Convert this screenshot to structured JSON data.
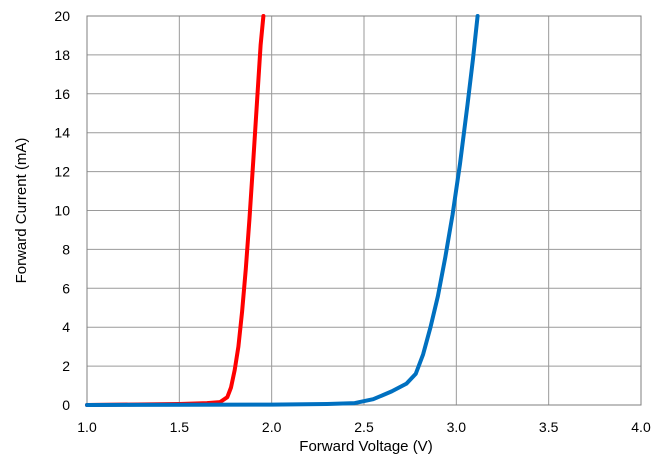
{
  "chart_data": {
    "type": "line",
    "title": "",
    "xlabel": "Forward Voltage (V)",
    "ylabel": "Forward Current (mA)",
    "xlim": [
      1.0,
      4.0
    ],
    "ylim": [
      0,
      20
    ],
    "x_ticks": [
      "1.0",
      "1.5",
      "2.0",
      "2.5",
      "3.0",
      "3.5",
      "4.0"
    ],
    "y_ticks": [
      "0",
      "2",
      "4",
      "6",
      "8",
      "10",
      "12",
      "14",
      "16",
      "18",
      "20"
    ],
    "grid": true,
    "legend": "none",
    "series": [
      {
        "color": "#ff0000",
        "points": [
          [
            1.0,
            0.0
          ],
          [
            1.5,
            0.05
          ],
          [
            1.65,
            0.1
          ],
          [
            1.72,
            0.15
          ],
          [
            1.76,
            0.4
          ],
          [
            1.78,
            0.9
          ],
          [
            1.8,
            1.8
          ],
          [
            1.82,
            3.0
          ],
          [
            1.84,
            4.8
          ],
          [
            1.86,
            7.0
          ],
          [
            1.88,
            9.6
          ],
          [
            1.9,
            12.5
          ],
          [
            1.92,
            15.5
          ],
          [
            1.94,
            18.5
          ],
          [
            1.955,
            20.0
          ]
        ]
      },
      {
        "color": "#0070c0",
        "points": [
          [
            1.0,
            0.0
          ],
          [
            2.0,
            0.02
          ],
          [
            2.3,
            0.05
          ],
          [
            2.45,
            0.1
          ],
          [
            2.55,
            0.3
          ],
          [
            2.65,
            0.7
          ],
          [
            2.73,
            1.1
          ],
          [
            2.78,
            1.6
          ],
          [
            2.82,
            2.6
          ],
          [
            2.86,
            4.0
          ],
          [
            2.9,
            5.6
          ],
          [
            2.94,
            7.6
          ],
          [
            2.98,
            9.8
          ],
          [
            3.02,
            12.4
          ],
          [
            3.06,
            15.4
          ],
          [
            3.09,
            17.8
          ],
          [
            3.115,
            20.0
          ]
        ]
      }
    ]
  }
}
